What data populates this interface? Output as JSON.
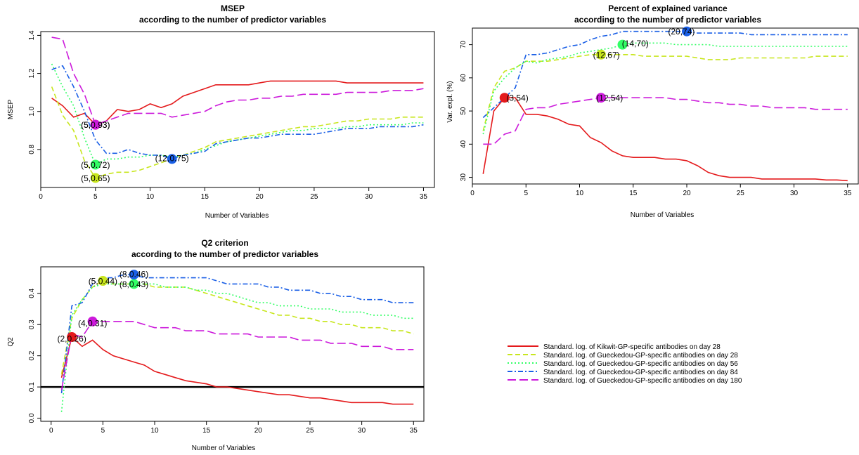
{
  "series_styles": [
    {
      "color": "#e41a1c",
      "dash": ""
    },
    {
      "color": "#c8e61e",
      "dash": "7,4"
    },
    {
      "color": "#33ff66",
      "dash": "2,3"
    },
    {
      "color": "#1a5fe6",
      "dash": "7,3,2,3"
    },
    {
      "color": "#cc1adb",
      "dash": "12,5"
    }
  ],
  "chart_data": [
    {
      "type": "line",
      "title": "MSEP",
      "subtitle": "according to the number of predictor variables",
      "xlabel": "Number of Variables",
      "ylabel": "MSEP",
      "xlim": [
        0,
        36
      ],
      "ylim": [
        0.6,
        1.42
      ],
      "xticks": [
        0,
        5,
        10,
        15,
        20,
        25,
        30,
        35
      ],
      "yticks": [
        0.8,
        1.0,
        1.2,
        1.4
      ],
      "ytick_labels": [
        "0.8",
        "1.0",
        "1.2",
        "1.4"
      ],
      "x": [
        1,
        2,
        3,
        4,
        5,
        6,
        7,
        8,
        9,
        10,
        11,
        12,
        13,
        14,
        15,
        16,
        17,
        18,
        19,
        20,
        21,
        22,
        23,
        24,
        25,
        26,
        27,
        28,
        29,
        30,
        31,
        32,
        33,
        34,
        35
      ],
      "series": [
        {
          "values": [
            1.07,
            1.03,
            0.97,
            0.99,
            0.93,
            0.95,
            1.01,
            1.0,
            1.01,
            1.04,
            1.02,
            1.04,
            1.08,
            1.1,
            1.12,
            1.14,
            1.14,
            1.14,
            1.14,
            1.15,
            1.16,
            1.16,
            1.16,
            1.16,
            1.16,
            1.16,
            1.16,
            1.15,
            1.15,
            1.15,
            1.15,
            1.15,
            1.15,
            1.15,
            1.15
          ]
        },
        {
          "values": [
            1.13,
            0.98,
            0.9,
            0.74,
            0.65,
            0.67,
            0.68,
            0.68,
            0.69,
            0.71,
            0.73,
            0.75,
            0.77,
            0.79,
            0.81,
            0.84,
            0.85,
            0.86,
            0.87,
            0.88,
            0.89,
            0.9,
            0.91,
            0.92,
            0.92,
            0.93,
            0.94,
            0.95,
            0.95,
            0.96,
            0.96,
            0.96,
            0.97,
            0.97,
            0.97
          ]
        },
        {
          "values": [
            1.25,
            1.13,
            1.03,
            0.86,
            0.72,
            0.75,
            0.75,
            0.76,
            0.76,
            0.77,
            0.77,
            0.76,
            0.77,
            0.78,
            0.8,
            0.82,
            0.84,
            0.85,
            0.86,
            0.87,
            0.88,
            0.89,
            0.9,
            0.9,
            0.91,
            0.91,
            0.91,
            0.92,
            0.92,
            0.93,
            0.93,
            0.93,
            0.93,
            0.94,
            0.94
          ]
        },
        {
          "values": [
            1.22,
            1.24,
            1.13,
            1.0,
            0.85,
            0.78,
            0.78,
            0.8,
            0.78,
            0.77,
            0.77,
            0.75,
            0.77,
            0.78,
            0.79,
            0.83,
            0.84,
            0.85,
            0.86,
            0.86,
            0.87,
            0.88,
            0.88,
            0.88,
            0.88,
            0.89,
            0.9,
            0.91,
            0.91,
            0.91,
            0.92,
            0.92,
            0.92,
            0.92,
            0.93
          ]
        },
        {
          "values": [
            1.39,
            1.38,
            1.2,
            1.09,
            0.93,
            0.95,
            0.97,
            0.99,
            0.99,
            0.99,
            0.99,
            0.97,
            0.98,
            0.99,
            1.0,
            1.03,
            1.05,
            1.06,
            1.06,
            1.07,
            1.07,
            1.08,
            1.08,
            1.09,
            1.09,
            1.09,
            1.09,
            1.1,
            1.1,
            1.1,
            1.1,
            1.11,
            1.11,
            1.11,
            1.12
          ]
        }
      ],
      "points": [
        {
          "series": 0,
          "x": 5,
          "y": 0.93,
          "label": "(5,0.93)",
          "lx": 5,
          "ly": 0.93
        },
        {
          "series": 4,
          "x": 5,
          "y": 0.93,
          "label": "(5,0.93)",
          "lx": 5,
          "ly": 0.93
        },
        {
          "series": 2,
          "x": 5,
          "y": 0.72,
          "label": "(5,0.72)",
          "lx": 5,
          "ly": 0.72
        },
        {
          "series": 1,
          "x": 5,
          "y": 0.65,
          "label": "(5,0.65)",
          "lx": 5,
          "ly": 0.65
        },
        {
          "series": 3,
          "x": 12,
          "y": 0.75,
          "label": "(12,0.75)",
          "lx": 12,
          "ly": 0.755
        }
      ]
    },
    {
      "type": "line",
      "title": "Percent of explained variance",
      "subtitle": "according to the number of predictor variables",
      "xlabel": "Number of Variables",
      "ylabel": "Var. expl. (%)",
      "xlim": [
        0,
        36
      ],
      "ylim": [
        28,
        75
      ],
      "xticks": [
        0,
        5,
        10,
        15,
        20,
        25,
        30,
        35
      ],
      "yticks": [
        30,
        40,
        50,
        60,
        70
      ],
      "ytick_labels": [
        "30",
        "40",
        "50",
        "60",
        "70"
      ],
      "x": [
        1,
        2,
        3,
        4,
        5,
        6,
        7,
        8,
        9,
        10,
        11,
        12,
        13,
        14,
        15,
        16,
        17,
        18,
        19,
        20,
        21,
        22,
        23,
        24,
        25,
        26,
        27,
        28,
        29,
        30,
        31,
        32,
        33,
        34,
        35
      ],
      "series": [
        {
          "values": [
            31,
            50,
            54,
            54,
            49,
            49,
            48.5,
            47.5,
            46,
            45.5,
            42,
            40.5,
            38,
            36.5,
            36,
            36,
            36,
            35.5,
            35.5,
            35,
            33.5,
            31.5,
            30.5,
            30,
            30,
            30,
            29.5,
            29.5,
            29.5,
            29.5,
            29.5,
            29.5,
            29.2,
            29.2,
            29
          ]
        },
        {
          "values": [
            44,
            57,
            62,
            63,
            65,
            65,
            65,
            65.5,
            66,
            66.5,
            67,
            67,
            67,
            67,
            67,
            66.5,
            66.5,
            66.5,
            66.5,
            66.5,
            66,
            65.5,
            65.5,
            65.5,
            66,
            66,
            66,
            66,
            66,
            66,
            66,
            66.5,
            66.5,
            66.5,
            66.5
          ]
        },
        {
          "values": [
            43,
            56,
            60,
            63,
            65,
            64.5,
            65.5,
            66,
            66.5,
            67.5,
            68,
            68.5,
            69,
            70,
            70.5,
            70.5,
            70.5,
            70.5,
            70,
            70,
            70,
            70,
            69.5,
            69.5,
            69.5,
            69.5,
            69.5,
            69.5,
            69.5,
            69.5,
            69.5,
            69.5,
            69.5,
            69.5,
            69.5
          ]
        },
        {
          "values": [
            48,
            51,
            54,
            57,
            67,
            67,
            67.5,
            68.5,
            69.5,
            70,
            71.5,
            72.5,
            73,
            74,
            74,
            74,
            74,
            74,
            74,
            74,
            73.5,
            73.5,
            73.5,
            73.5,
            73.5,
            73,
            73,
            73,
            73,
            73,
            73,
            73,
            73,
            73,
            73
          ]
        },
        {
          "values": [
            40,
            40,
            43,
            44,
            50.5,
            51,
            51,
            52,
            52.5,
            53,
            53.5,
            54,
            54,
            54,
            54,
            54,
            54,
            54,
            53.5,
            53.5,
            53,
            52.5,
            52.5,
            52,
            52,
            51.5,
            51.5,
            51,
            51,
            51,
            51,
            50.5,
            50.5,
            50.5,
            50.5
          ]
        }
      ],
      "points": [
        {
          "series": 0,
          "x": 3,
          "y": 54,
          "label": "(3,54)",
          "lx": 4.2,
          "ly": 54
        },
        {
          "series": 4,
          "x": 12,
          "y": 54,
          "label": "(12,54)",
          "lx": 12.8,
          "ly": 54
        },
        {
          "series": 1,
          "x": 12,
          "y": 67,
          "label": "(12,67)",
          "lx": 12.5,
          "ly": 67
        },
        {
          "series": 2,
          "x": 14,
          "y": 70,
          "label": "(14,70)",
          "lx": 15.2,
          "ly": 70.4
        },
        {
          "series": 3,
          "x": 20,
          "y": 74,
          "label": "(20,74)",
          "lx": 19.5,
          "ly": 74
        }
      ]
    },
    {
      "type": "line",
      "title": "Q2 criterion",
      "subtitle": "according to the number of predictor variables",
      "xlabel": "Number of Variables",
      "ylabel": "Q2",
      "xlim": [
        -1,
        36
      ],
      "ylim": [
        -0.01,
        0.485
      ],
      "xticks": [
        0,
        5,
        10,
        15,
        20,
        25,
        30,
        35
      ],
      "yticks": [
        0.0,
        0.1,
        0.2,
        0.3,
        0.4
      ],
      "ytick_labels": [
        "0.0",
        "0.1",
        "0.2",
        "0.3",
        "0.4"
      ],
      "hline": 0.1,
      "x": [
        1,
        2,
        3,
        4,
        5,
        6,
        7,
        8,
        9,
        10,
        11,
        12,
        13,
        14,
        15,
        16,
        17,
        18,
        19,
        20,
        21,
        22,
        23,
        24,
        25,
        26,
        27,
        28,
        29,
        30,
        31,
        32,
        33,
        34,
        35
      ],
      "series": [
        {
          "values": [
            0.13,
            0.26,
            0.23,
            0.25,
            0.22,
            0.2,
            0.19,
            0.18,
            0.17,
            0.15,
            0.14,
            0.13,
            0.12,
            0.115,
            0.11,
            0.1,
            0.1,
            0.095,
            0.09,
            0.085,
            0.08,
            0.075,
            0.075,
            0.07,
            0.065,
            0.065,
            0.06,
            0.055,
            0.05,
            0.05,
            0.05,
            0.05,
            0.045,
            0.045,
            0.045
          ]
        },
        {
          "values": [
            0.14,
            0.32,
            0.38,
            0.42,
            0.44,
            0.43,
            0.43,
            0.43,
            0.43,
            0.42,
            0.42,
            0.42,
            0.42,
            0.41,
            0.4,
            0.39,
            0.38,
            0.37,
            0.36,
            0.35,
            0.34,
            0.33,
            0.33,
            0.32,
            0.32,
            0.31,
            0.31,
            0.3,
            0.3,
            0.29,
            0.29,
            0.29,
            0.28,
            0.28,
            0.27
          ]
        },
        {
          "values": [
            0.02,
            0.33,
            0.38,
            0.42,
            0.43,
            0.43,
            0.43,
            0.43,
            0.43,
            0.43,
            0.42,
            0.42,
            0.42,
            0.41,
            0.41,
            0.4,
            0.4,
            0.39,
            0.38,
            0.37,
            0.37,
            0.36,
            0.36,
            0.36,
            0.35,
            0.35,
            0.35,
            0.34,
            0.34,
            0.34,
            0.33,
            0.33,
            0.33,
            0.32,
            0.32
          ]
        },
        {
          "values": [
            0.08,
            0.36,
            0.37,
            0.43,
            0.45,
            0.45,
            0.46,
            0.46,
            0.45,
            0.45,
            0.45,
            0.45,
            0.45,
            0.45,
            0.45,
            0.44,
            0.43,
            0.43,
            0.43,
            0.43,
            0.42,
            0.42,
            0.41,
            0.41,
            0.41,
            0.4,
            0.4,
            0.39,
            0.39,
            0.38,
            0.38,
            0.38,
            0.37,
            0.37,
            0.37
          ]
        },
        {
          "values": [
            0.09,
            0.27,
            0.26,
            0.31,
            0.31,
            0.31,
            0.31,
            0.31,
            0.3,
            0.29,
            0.29,
            0.29,
            0.28,
            0.28,
            0.28,
            0.27,
            0.27,
            0.27,
            0.27,
            0.26,
            0.26,
            0.26,
            0.26,
            0.25,
            0.25,
            0.25,
            0.24,
            0.24,
            0.24,
            0.23,
            0.23,
            0.23,
            0.22,
            0.22,
            0.22
          ]
        }
      ],
      "points": [
        {
          "series": 0,
          "x": 2,
          "y": 0.26,
          "label": "(2,0.26)",
          "lx": 2,
          "ly": 0.255
        },
        {
          "series": 4,
          "x": 4,
          "y": 0.31,
          "label": "(4,0.31)",
          "lx": 4,
          "ly": 0.305
        },
        {
          "series": 1,
          "x": 5,
          "y": 0.44,
          "label": "(5,0.44)",
          "lx": 5,
          "ly": 0.44
        },
        {
          "series": 2,
          "x": 8,
          "y": 0.43,
          "label": "(8,0.43)",
          "lx": 8,
          "ly": 0.43
        },
        {
          "series": 3,
          "x": 8,
          "y": 0.46,
          "label": "(8,0.46)",
          "lx": 8,
          "ly": 0.463
        }
      ]
    }
  ],
  "legend": {
    "placement": "bottom-right",
    "entries": [
      "Standard. log. of Kikwit-GP-specific antibodies on day 28",
      "Standard. log. of Gueckedou-GP-specific antibodies on day 28",
      "Standard. log. of Gueckedou-GP-specific antibodies on day 56",
      "Standard. log. of Gueckedou-GP-specific antibodies on day 84",
      "Standard. log. of Gueckedou-GP-specific antibodies on day 180"
    ]
  }
}
